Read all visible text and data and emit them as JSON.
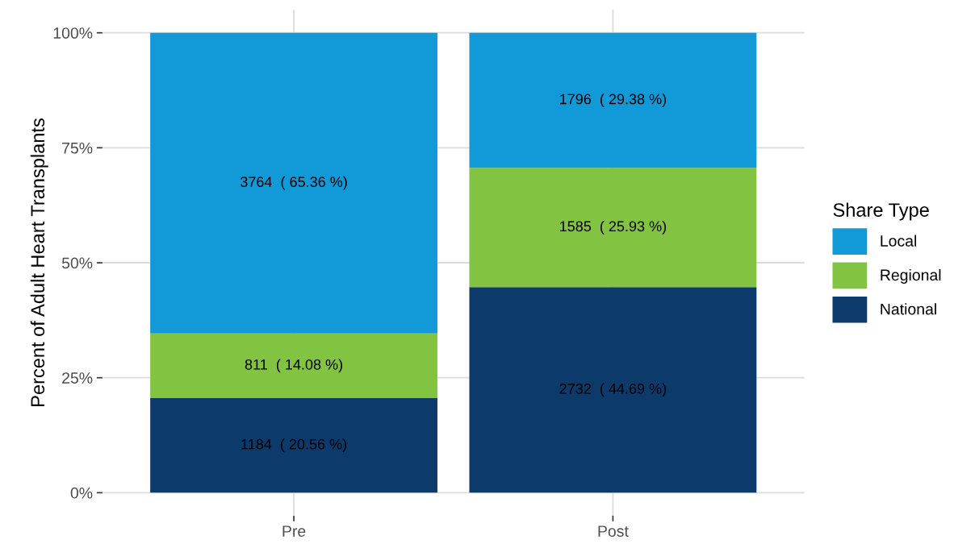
{
  "chart_data": {
    "type": "bar",
    "stacked": true,
    "ylabel": "Percent of Adult Heart Transplants",
    "legend_title": "Share Type",
    "legend": "right",
    "categories": [
      "Pre",
      "Post"
    ],
    "series": [
      {
        "name": "National",
        "color": "#0b3a6b",
        "values": [
          20.56,
          44.69
        ],
        "value_labels": [
          "1184  ( 20.56 %)",
          "2732  ( 44.69 %)"
        ]
      },
      {
        "name": "Regional",
        "color": "#82c341",
        "values": [
          14.08,
          25.93
        ],
        "value_labels": [
          "811  ( 14.08 %)",
          "1585  ( 25.93 %)"
        ]
      },
      {
        "name": "Local",
        "color": "#129ad8",
        "values": [
          65.36,
          29.38
        ],
        "value_labels": [
          "3764  ( 65.36 %)",
          "1796  ( 29.38 %)"
        ]
      }
    ],
    "ylim": [
      -5,
      105
    ],
    "yticks": [
      {
        "value": 0,
        "label": "0%"
      },
      {
        "value": 25,
        "label": "25%"
      },
      {
        "value": 50,
        "label": "50%"
      },
      {
        "value": 75,
        "label": "75%"
      },
      {
        "value": 100,
        "label": "100%"
      }
    ],
    "grid": true
  }
}
